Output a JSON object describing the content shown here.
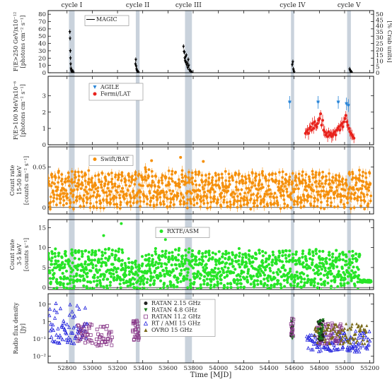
{
  "chart_data": {
    "type": "scatter",
    "x_axis": {
      "label": "Time [MJD]",
      "range": [
        52650,
        55230
      ],
      "ticks": [
        52800,
        53000,
        53200,
        53400,
        53600,
        53800,
        54000,
        54200,
        54400,
        54600,
        54800,
        55000,
        55200
      ],
      "tick_labels": [
        "52800",
        "53000",
        "53200",
        "53400",
        "53600",
        "53800",
        "54000",
        "54200",
        "54400",
        "54600",
        "54800",
        "55000",
        "55200"
      ]
    },
    "cycles": [
      {
        "label": "cycle I",
        "start": 52815,
        "end": 52860
      },
      {
        "label": "cycle II",
        "start": 53345,
        "end": 53375
      },
      {
        "label": "cycle III",
        "start": 53735,
        "end": 53790
      },
      {
        "label": "cycle IV",
        "start": 54575,
        "end": 54600
      },
      {
        "label": "cycle V",
        "start": 55020,
        "end": 55050
      }
    ],
    "panels": [
      {
        "id": "magic",
        "ylabel_lines": [
          "F(E>250 GeV)x10⁻¹²",
          "[photons cm⁻² s⁻¹]"
        ],
        "ylim": [
          0,
          85
        ],
        "yticks": [
          0,
          10,
          20,
          30,
          40,
          50,
          60,
          70,
          80
        ],
        "right_axis": {
          "label": "[% Crab units]",
          "ylim": [
            0,
            53
          ],
          "ticks": [
            0,
            5,
            10,
            15,
            20,
            25,
            30,
            35,
            40,
            45,
            50
          ]
        },
        "series": [
          {
            "name": "MAGIC",
            "color": "#000000",
            "marker": "line",
            "points": [
              [
                52822,
                56
              ],
              [
                52824,
                47
              ],
              [
                52826,
                30
              ],
              [
                52827,
                20
              ],
              [
                52829,
                12
              ],
              [
                52831,
                6
              ],
              [
                52833,
                4
              ],
              [
                52835,
                2
              ],
              [
                52838,
                3
              ],
              [
                52842,
                1
              ],
              [
                52846,
                2
              ],
              [
                52850,
                0.5
              ],
              [
                53342,
                12
              ],
              [
                53345,
                18
              ],
              [
                53348,
                9
              ],
              [
                53351,
                5
              ],
              [
                53354,
                3
              ],
              [
                53358,
                2
              ],
              [
                53362,
                1
              ],
              [
                53366,
                0.5
              ],
              [
                53723,
                36
              ],
              [
                53727,
                29
              ],
              [
                53730,
                28
              ],
              [
                53733,
                20
              ],
              [
                53736,
                16
              ],
              [
                53739,
                22
              ],
              [
                53742,
                15
              ],
              [
                53745,
                24
              ],
              [
                53749,
                11
              ],
              [
                53753,
                13
              ],
              [
                53757,
                7
              ],
              [
                53761,
                18
              ],
              [
                53765,
                10
              ],
              [
                53770,
                4
              ],
              [
                53780,
                2
              ],
              [
                53790,
                0.5
              ],
              [
                54585,
                11
              ],
              [
                54590,
                15
              ],
              [
                54594,
                5
              ],
              [
                54597,
                3
              ],
              [
                54600,
                1
              ],
              [
                55040,
                5
              ],
              [
                55044,
                3
              ],
              [
                55048,
                2
              ],
              [
                55052,
                1
              ],
              [
                55056,
                0.5
              ]
            ]
          }
        ]
      },
      {
        "id": "fermi",
        "ylabel_lines": [
          "F(E>100 MeV)x10⁻⁶",
          "[photons cm⁻² s⁻¹]"
        ],
        "ylim": [
          0,
          4.2
        ],
        "yticks": [
          0,
          1,
          2,
          3
        ],
        "series": [
          {
            "name": "AGILE",
            "color": "#2a86d8",
            "marker": "triangle-down",
            "points": [
              [
                54565,
                2.6
              ],
              [
                54790,
                2.6
              ],
              [
                54950,
                2.6
              ],
              [
                55015,
                2.5
              ],
              [
                55030,
                2.4
              ]
            ]
          },
          {
            "name": "Fermi/LAT",
            "color": "#e8221c",
            "marker": "circle",
            "points": [
              [
                54690,
                0.7
              ],
              [
                54698,
                0.8
              ],
              [
                54706,
                0.9
              ],
              [
                54714,
                0.7
              ],
              [
                54722,
                1.0
              ],
              [
                54730,
                1.1
              ],
              [
                54738,
                0.9
              ],
              [
                54746,
                1.3
              ],
              [
                54754,
                1.0
              ],
              [
                54762,
                1.4
              ],
              [
                54770,
                1.2
              ],
              [
                54778,
                1.1
              ],
              [
                54786,
                1.3
              ],
              [
                54794,
                1.5
              ],
              [
                54802,
                1.6
              ],
              [
                54810,
                1.9
              ],
              [
                54818,
                1.2
              ],
              [
                54826,
                1.5
              ],
              [
                54834,
                0.9
              ],
              [
                54842,
                0.8
              ],
              [
                54850,
                0.6
              ],
              [
                54858,
                0.7
              ],
              [
                54866,
                0.5
              ],
              [
                54874,
                0.8
              ],
              [
                54882,
                0.6
              ],
              [
                54890,
                0.7
              ],
              [
                54898,
                0.5
              ],
              [
                54906,
                0.6
              ],
              [
                54914,
                0.7
              ],
              [
                54922,
                0.8
              ],
              [
                54930,
                0.6
              ],
              [
                54938,
                0.9
              ],
              [
                54946,
                1.0
              ],
              [
                54954,
                1.1
              ],
              [
                54962,
                0.9
              ],
              [
                54970,
                1.2
              ],
              [
                54978,
                1.3
              ],
              [
                54986,
                1.1
              ],
              [
                54994,
                1.4
              ],
              [
                55002,
                1.6
              ],
              [
                55010,
                1.8
              ],
              [
                55018,
                1.4
              ],
              [
                55026,
                1.2
              ],
              [
                55034,
                1.0
              ],
              [
                55042,
                0.8
              ],
              [
                55050,
                0.7
              ],
              [
                55058,
                0.6
              ],
              [
                55066,
                0.5
              ],
              [
                55074,
                0.4
              ]
            ]
          }
        ]
      },
      {
        "id": "bat",
        "ylabel_lines": [
          "Count rate",
          "15-50 keV",
          "[counts cm⁻² s⁻¹]"
        ],
        "ylim": [
          -0.008,
          0.075
        ],
        "yticks": [
          0,
          0.05
        ],
        "ytick_labels": [
          "0",
          "0.05"
        ],
        "series": [
          {
            "name": "Swift/BAT",
            "color": "#f5900c",
            "marker": "circle",
            "model": {
              "baseline": 0.022,
              "amplitude": 0.018,
              "period": 26.5,
              "phase": 0.35
            },
            "x_range": [
              52650,
              55210
            ]
          }
        ]
      },
      {
        "id": "asm",
        "ylabel_lines": [
          "Count rate",
          "3-5 keV",
          "[counts s⁻¹]"
        ],
        "ylim": [
          -0.5,
          17
        ],
        "yticks": [
          0,
          5,
          10,
          15
        ],
        "series": [
          {
            "name": "RXTE/ASM",
            "color": "#27e527",
            "marker": "circle",
            "model": {
              "baseline": 4.5,
              "amplitude": 4.0,
              "period": 26.5,
              "phase": 0.3
            },
            "x_range": [
              52650,
              55210
            ]
          }
        ]
      },
      {
        "id": "radio",
        "ylabel_lines": [
          "Radio flux density",
          "[Jy]"
        ],
        "log_scale": true,
        "ylim": [
          0.004,
          40
        ],
        "yticks": [
          0.01,
          0.1,
          1,
          10
        ],
        "ytick_labels": [
          "10⁻²",
          "10⁻¹",
          "1",
          "10"
        ],
        "series": [
          {
            "name": "RATAN 2.15 GHz",
            "color": "#222222",
            "marker": "circle"
          },
          {
            "name": "RATAN 4.8 GHz",
            "color": "#1a7a1a",
            "marker": "triangle-down"
          },
          {
            "name": "RATAN 11.2 GHz",
            "color": "#8a3a8a",
            "marker": "square-open"
          },
          {
            "name": "RT / AMI 15 GHz",
            "color": "#2222dd",
            "marker": "triangle-open"
          },
          {
            "name": "OVRO 15 GHz",
            "color": "#7a6a1a",
            "marker": "triangle-up"
          }
        ],
        "groups": [
          {
            "series": 3,
            "x_range": [
              52660,
              52960
            ],
            "y_mid": 0.2
          },
          {
            "series": 2,
            "x_range": [
              52880,
              53000
            ],
            "y_mid": 0.2
          },
          {
            "series": 2,
            "x_range": [
              53030,
              53160
            ],
            "y_mid": 0.15
          },
          {
            "series": 2,
            "x_range": [
              53320,
              53380
            ],
            "y_mid": 0.3
          },
          {
            "series": 0,
            "x_range": [
              54575,
              54590
            ],
            "y_mid": 0.3
          },
          {
            "series": 1,
            "x_range": [
              54578,
              54592
            ],
            "y_mid": 0.4
          },
          {
            "series": 2,
            "x_range": [
              54575,
              54595
            ],
            "y_mid": 0.5
          },
          {
            "series": 3,
            "x_range": [
              54700,
              55200
            ],
            "y_mid": 0.07
          },
          {
            "series": 2,
            "x_range": [
              54780,
              54980
            ],
            "y_mid": 0.2
          },
          {
            "series": 4,
            "x_range": [
              54760,
              55180
            ],
            "y_mid": 0.2
          },
          {
            "series": 0,
            "x_range": [
              54790,
              54830
            ],
            "y_mid": 0.3
          },
          {
            "series": 1,
            "x_range": [
              54790,
              54830
            ],
            "y_mid": 0.35
          }
        ]
      }
    ]
  }
}
